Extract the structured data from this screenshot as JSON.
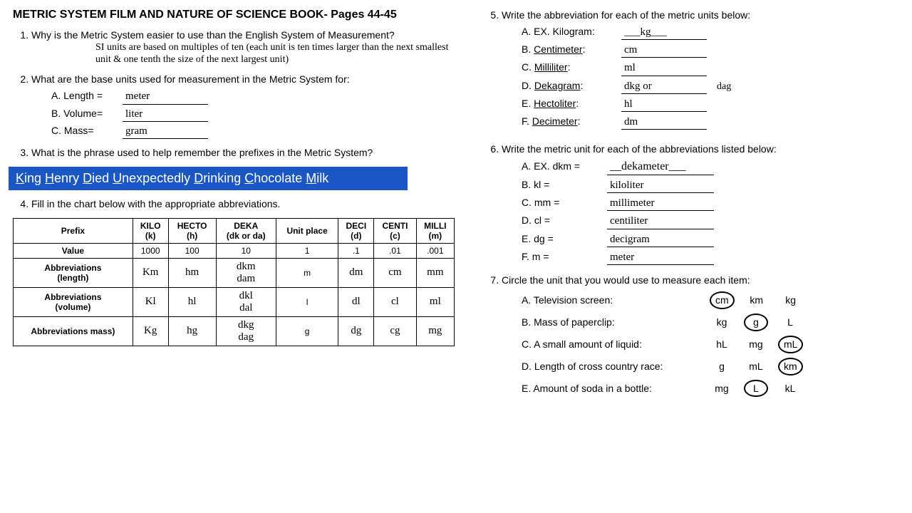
{
  "title": "METRIC SYSTEM FILM AND NATURE OF SCIENCE BOOK- Pages 44-45",
  "q1": {
    "text": "Why is the Metric System easier to use than the English System of Measurement?",
    "answer": "SI units are based on multiples of ten (each unit is ten times larger than the next smallest unit & one tenth the size of the next largest unit)"
  },
  "q2": {
    "text": "What are the base units used for measurement in the Metric System for:",
    "items": [
      {
        "label": "A. Length =",
        "answer": "meter"
      },
      {
        "label": "B. Volume=",
        "answer": "liter"
      },
      {
        "label": "C. Mass=",
        "answer": "gram"
      }
    ]
  },
  "q3": {
    "text": "What is the phrase used to help remember the prefixes in the Metric System?",
    "mnemonic_html": "<span>K</span>ing <span>H</span>enry <span>D</span>ied <span>U</span>nexpectedly <span>D</span>rinking <span>C</span>hocolate <span>M</span>ilk"
  },
  "q4": {
    "text": "Fill in the chart below with the appropriate abbreviations.",
    "headers": [
      "Prefix",
      "KILO (k)",
      "HECTO (h)",
      "DEKA (dk or da)",
      "Unit place",
      "DECI (d)",
      "CENTI (c)",
      "MILLI (m)"
    ],
    "rows": [
      {
        "head": "Value",
        "cells": [
          "1000",
          "100",
          "10",
          "1",
          ".1",
          ".01",
          ".001"
        ],
        "hand": false
      },
      {
        "head": "Abbreviations (length)",
        "cells": [
          "Km",
          "hm",
          "dkm dam",
          "m",
          "dm",
          "cm",
          "mm"
        ],
        "hand": true,
        "plain_idx": 3
      },
      {
        "head": "Abbreviations (volume)",
        "cells": [
          "Kl",
          "hl",
          "dkl dal",
          "l",
          "dl",
          "cl",
          "ml"
        ],
        "hand": true,
        "plain_idx": 3
      },
      {
        "head": "Abbreviations mass)",
        "cells": [
          "Kg",
          "hg",
          "dkg dag",
          "g",
          "dg",
          "cg",
          "mg"
        ],
        "hand": true,
        "plain_idx": 3
      }
    ]
  },
  "q5": {
    "text": "Write the abbreviation for each of the metric units below:",
    "items": [
      {
        "label": "A. EX. Kilogram:",
        "answer": "___kg___",
        "underline": false
      },
      {
        "label": "B. Centimeter:",
        "answer": "cm",
        "underline": true
      },
      {
        "label": "C. Milliliter:",
        "answer": "ml",
        "underline": true
      },
      {
        "label": "D. Dekagram:",
        "answer": "dkg or",
        "after": "dag",
        "underline": true
      },
      {
        "label": "E. Hectoliter:",
        "answer": "hl",
        "underline": true
      },
      {
        "label": "F. Decimeter:",
        "answer": "dm",
        "underline": true
      }
    ]
  },
  "q6": {
    "text": "Write the metric unit for each of the abbreviations listed below:",
    "items": [
      {
        "label": "A. EX. dkm =",
        "answer": "__dekameter___",
        "hand": false
      },
      {
        "label": "B. kl =",
        "answer": "kiloliter",
        "hand": true
      },
      {
        "label": "C. mm =",
        "answer": "millimeter",
        "hand": true
      },
      {
        "label": "D. cl =",
        "answer": "centiliter",
        "hand": true
      },
      {
        "label": "E. dg =",
        "answer": "decigram",
        "hand": true
      },
      {
        "label": "F. m =",
        "answer": "meter",
        "hand": true
      }
    ]
  },
  "q7": {
    "text": "Circle the unit that you would use to measure each item:",
    "items": [
      {
        "label": "A. Television screen:",
        "opts": [
          "cm",
          "km",
          "kg"
        ],
        "circled": 0
      },
      {
        "label": "B. Mass of paperclip:",
        "opts": [
          "kg",
          "g",
          "L"
        ],
        "circled": 1
      },
      {
        "label": "C. A small amount of liquid:",
        "opts": [
          "hL",
          "mg",
          "mL"
        ],
        "circled": 2
      },
      {
        "label": "D. Length of cross country race:",
        "opts": [
          "g",
          "mL",
          "km"
        ],
        "circled": 2
      },
      {
        "label": "E. Amount of soda in a bottle:",
        "opts": [
          "mg",
          "L",
          "kL"
        ],
        "circled": 1
      }
    ]
  }
}
